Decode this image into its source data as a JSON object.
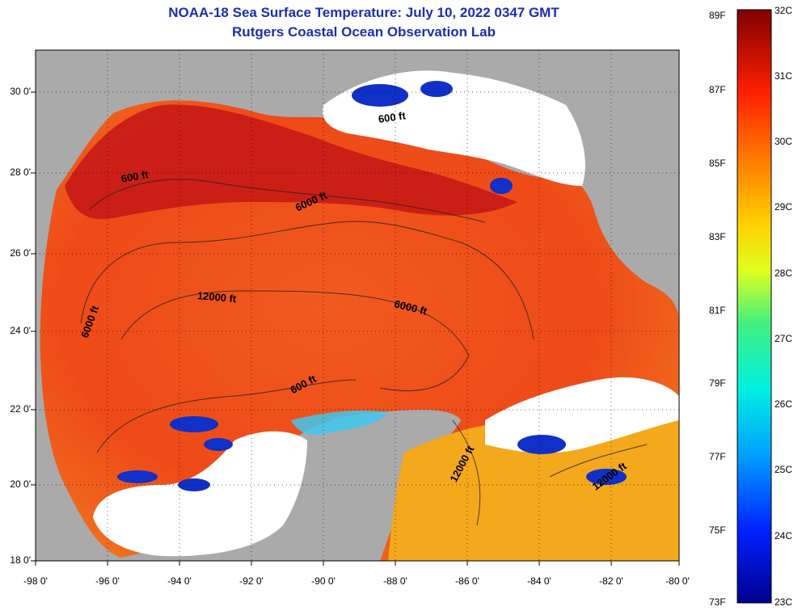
{
  "title_line1": "NOAA-18 Sea Surface Temperature:  July 10, 2022 0347 GMT",
  "title_line2": "Rutgers Coastal Ocean Observation Lab",
  "lat_labels": [
    "30 0'",
    "28 0'",
    "26 0'",
    "24 0'",
    "22 0'",
    "20 0'",
    "18 0'"
  ],
  "lon_labels": [
    "-98 0'",
    "-96 0'",
    "-94 0'",
    "-92 0'",
    "-90 0'",
    "-88 0'",
    "-86 0'",
    "-84 0'",
    "-82 0'",
    "-80 0'"
  ],
  "colorbar": {
    "fahrenheit": [
      "89F",
      "87F",
      "85F",
      "83F",
      "81F",
      "79F",
      "77F",
      "75F",
      "73F"
    ],
    "celsius": [
      "32C",
      "31C",
      "30C",
      "29C",
      "28C",
      "27C",
      "26C",
      "25C",
      "24C",
      "23C"
    ]
  },
  "contour_labels": [
    {
      "text": "600 ft"
    },
    {
      "text": "6000 ft"
    },
    {
      "text": "12000 ft"
    },
    {
      "text": "6000 ft"
    },
    {
      "text": "6000 ft"
    },
    {
      "text": "600 ft"
    },
    {
      "text": "600 ft"
    },
    {
      "text": "12000 ft"
    },
    {
      "text": "12000 ft"
    }
  ],
  "colors": {
    "land": "#aaaaaa",
    "cloud": "#ffffff",
    "warm": "#e8381a",
    "hot": "#c01010",
    "cool": "#f0a020",
    "cold": "#1020c0",
    "title": "#1a2fb0"
  }
}
